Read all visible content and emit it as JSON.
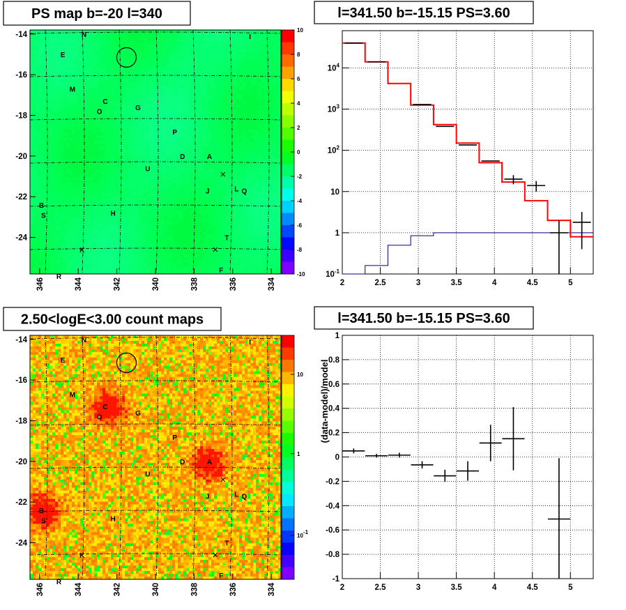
{
  "colors": {
    "data": "#000000",
    "model": "#ff0000",
    "component": "#00008b",
    "grid": "#000000"
  },
  "chart_data": [
    {
      "type": "heatmap",
      "title": "PS map b=-20 l=340",
      "x_ticks": [
        "346",
        "344",
        "342",
        "340",
        "338",
        "336",
        "334"
      ],
      "y_ticks": [
        "-14",
        "-16",
        "-18",
        "-20",
        "-22",
        "-24"
      ],
      "xlim": [
        346.5,
        333.5
      ],
      "ylim": [
        -25.8,
        -13.8
      ],
      "colorbar_ticks": [
        "10",
        "8",
        "6",
        "4",
        "2",
        "0",
        "-2",
        "-4",
        "-6",
        "-8",
        "-10"
      ],
      "colorbar_range": [
        -10,
        10
      ],
      "circle": {
        "l": 341.5,
        "b": -15.15
      },
      "crosses": [
        {
          "l": 336.5,
          "b": -20.9
        },
        {
          "l": 336.9,
          "b": -24.6
        }
      ],
      "sources": [
        {
          "label": "N",
          "l": 343.7,
          "b": -14.0
        },
        {
          "label": "I",
          "l": 335.1,
          "b": -14.1
        },
        {
          "label": "E",
          "l": 344.8,
          "b": -15.0
        },
        {
          "label": "M",
          "l": 344.3,
          "b": -16.7
        },
        {
          "label": "C",
          "l": 342.6,
          "b": -17.3
        },
        {
          "label": "O",
          "l": 342.9,
          "b": -17.8
        },
        {
          "label": "G",
          "l": 340.9,
          "b": -17.6
        },
        {
          "label": "P",
          "l": 339.0,
          "b": -18.8
        },
        {
          "label": "D",
          "l": 338.6,
          "b": -20.0
        },
        {
          "label": "A",
          "l": 337.2,
          "b": -20.0
        },
        {
          "label": "U",
          "l": 340.4,
          "b": -20.6
        },
        {
          "label": "J",
          "l": 337.3,
          "b": -21.7
        },
        {
          "label": "L",
          "l": 335.8,
          "b": -21.6
        },
        {
          "label": "Q",
          "l": 335.4,
          "b": -21.7
        },
        {
          "label": "B",
          "l": 345.9,
          "b": -22.4
        },
        {
          "label": "S",
          "l": 345.8,
          "b": -22.9
        },
        {
          "label": "H",
          "l": 342.2,
          "b": -22.8
        },
        {
          "label": "T",
          "l": 336.3,
          "b": -24.0
        },
        {
          "label": "K",
          "l": 343.8,
          "b": -24.6
        },
        {
          "label": "F",
          "l": 336.6,
          "b": -25.6
        },
        {
          "label": "R",
          "l": 345.0,
          "b": -25.9
        }
      ]
    },
    {
      "type": "line",
      "title": "l=341.50 b=-15.15 PS=3.60",
      "yscale": "log",
      "xlim": [
        2.0,
        5.3
      ],
      "ylim": [
        0.1,
        80000
      ],
      "x_ticks": [
        "2",
        "2.5",
        "3",
        "3.5",
        "4",
        "4.5",
        "5"
      ],
      "y_ticks": [
        "10^{-1}",
        "1",
        "10",
        "10^{2}",
        "10^{3}",
        "10^{4}"
      ],
      "grid": true,
      "bin_edges": [
        2.0,
        2.3,
        2.6,
        2.9,
        3.2,
        3.5,
        3.8,
        4.1,
        4.4,
        4.7,
        5.0,
        5.3
      ],
      "data": [
        {
          "x": 2.15,
          "y": 40000
        },
        {
          "x": 2.45,
          "y": 14000
        },
        {
          "x": 3.05,
          "y": 1300
        },
        {
          "x": 3.35,
          "y": 380
        },
        {
          "x": 3.65,
          "y": 135
        },
        {
          "x": 3.95,
          "y": 55
        },
        {
          "x": 4.25,
          "y": 20,
          "err": 5
        },
        {
          "x": 4.55,
          "y": 14,
          "err": 4
        },
        {
          "x": 4.85,
          "y": 1.0,
          "err": 1.0
        },
        {
          "x": 5.15,
          "y": 1.8,
          "err": 1.4
        }
      ],
      "model": [
        40000,
        14000,
        4200,
        1250,
        420,
        150,
        50,
        17,
        6,
        2.0,
        0.8
      ],
      "component": [
        0.1,
        0.16,
        0.5,
        0.85,
        1.0,
        1.0,
        1.0,
        1.0,
        1.0,
        1.0,
        1.0
      ]
    },
    {
      "type": "heatmap",
      "title": "2.50<logE<3.00 count maps",
      "x_ticks": [
        "346",
        "344",
        "342",
        "340",
        "338",
        "336",
        "334"
      ],
      "y_ticks": [
        "-14",
        "-16",
        "-18",
        "-20",
        "-22",
        "-24"
      ],
      "xlim": [
        346.5,
        333.5
      ],
      "ylim": [
        -25.8,
        -13.8
      ],
      "colorbar_ticks": [
        "10",
        "1",
        "10^{-1}"
      ],
      "colorbar_scale": "log",
      "hotspots": [
        {
          "l": 337.3,
          "b": -20.0
        },
        {
          "l": 345.9,
          "b": -22.4
        },
        {
          "l": 342.5,
          "b": -17.3
        }
      ]
    },
    {
      "type": "scatter",
      "title": "l=341.50 b=-15.15 PS=3.60",
      "ylabel": "(data-model)/model",
      "xlim": [
        2.0,
        5.3
      ],
      "ylim": [
        -1,
        1
      ],
      "x_ticks": [
        "2",
        "2.5",
        "3",
        "3.5",
        "4",
        "4.5",
        "5"
      ],
      "y_ticks": [
        "-1",
        "-0.8",
        "-0.6",
        "-0.4",
        "-0.2",
        "0",
        "0.2",
        "0.4",
        "0.6",
        "0.8",
        "1"
      ],
      "grid": true,
      "points": [
        {
          "x": 2.15,
          "y": 0.05,
          "err": 0.02
        },
        {
          "x": 2.45,
          "y": 0.01,
          "err": 0.015
        },
        {
          "x": 2.75,
          "y": 0.015,
          "err": 0.02
        },
        {
          "x": 3.05,
          "y": -0.065,
          "err": 0.03
        },
        {
          "x": 3.35,
          "y": -0.155,
          "err": 0.05
        },
        {
          "x": 3.65,
          "y": -0.115,
          "err": 0.08
        },
        {
          "x": 3.95,
          "y": 0.115,
          "err": 0.15
        },
        {
          "x": 4.25,
          "y": 0.15,
          "err": 0.26
        },
        {
          "x": 4.85,
          "y": -0.51,
          "err": 0.5
        }
      ]
    }
  ]
}
